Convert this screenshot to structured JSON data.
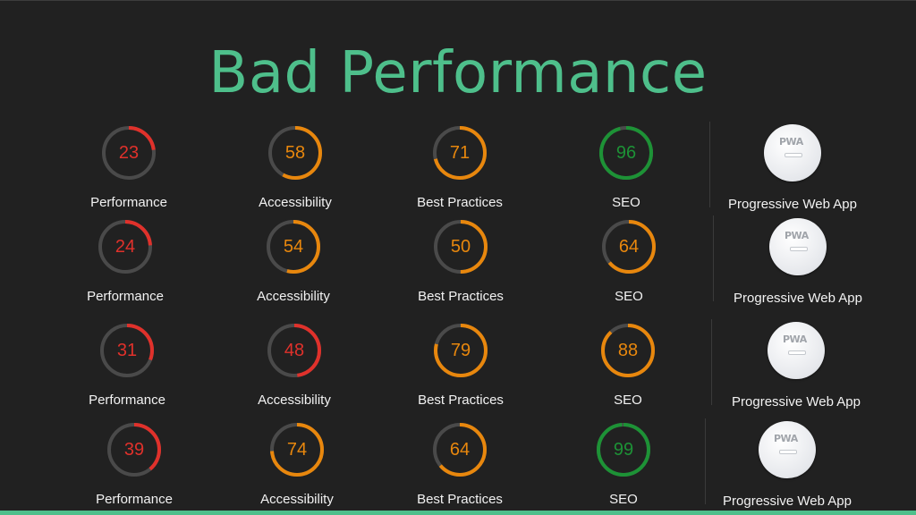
{
  "title": "Bad Performance",
  "colors": {
    "red": "#e0312b",
    "orange": "#e8870d",
    "green": "#1d9236",
    "track": "#4a4a4a",
    "accent": "#4ebf8b"
  },
  "pwa": {
    "label": "Progressive Web App",
    "badge_text": "PWA",
    "icon": "pwa-badge-icon"
  },
  "rows": [
    {
      "scores": [
        {
          "label": "Performance",
          "value": 23,
          "status": "red"
        },
        {
          "label": "Accessibility",
          "value": 58,
          "status": "orange"
        },
        {
          "label": "Best Practices",
          "value": 71,
          "status": "orange"
        },
        {
          "label": "SEO",
          "value": 96,
          "status": "green"
        }
      ]
    },
    {
      "scores": [
        {
          "label": "Performance",
          "value": 24,
          "status": "red"
        },
        {
          "label": "Accessibility",
          "value": 54,
          "status": "orange"
        },
        {
          "label": "Best Practices",
          "value": 50,
          "status": "orange"
        },
        {
          "label": "SEO",
          "value": 64,
          "status": "orange"
        }
      ]
    },
    {
      "scores": [
        {
          "label": "Performance",
          "value": 31,
          "status": "red"
        },
        {
          "label": "Accessibility",
          "value": 48,
          "status": "red"
        },
        {
          "label": "Best Practices",
          "value": 79,
          "status": "orange"
        },
        {
          "label": "SEO",
          "value": 88,
          "status": "orange"
        }
      ]
    },
    {
      "scores": [
        {
          "label": "Performance",
          "value": 39,
          "status": "red"
        },
        {
          "label": "Accessibility",
          "value": 74,
          "status": "orange"
        },
        {
          "label": "Best Practices",
          "value": 64,
          "status": "orange"
        },
        {
          "label": "SEO",
          "value": 99,
          "status": "green"
        }
      ]
    }
  ]
}
